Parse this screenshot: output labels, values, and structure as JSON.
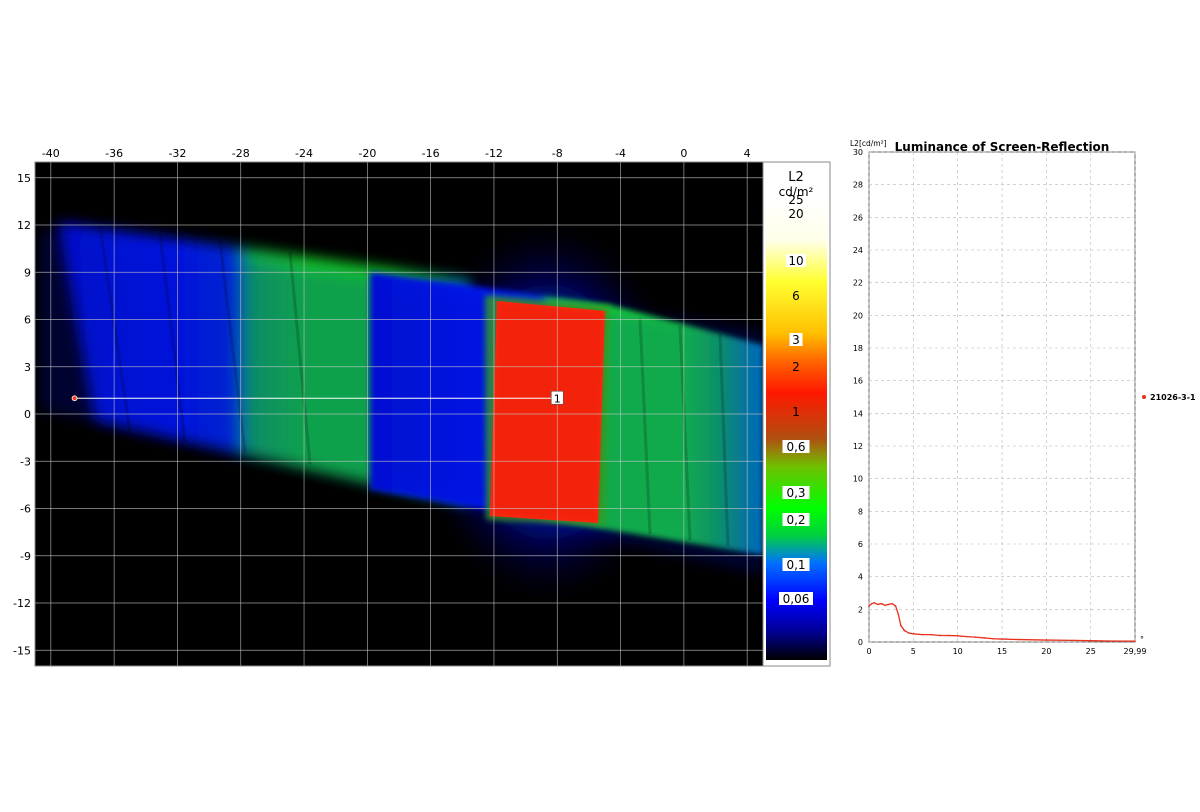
{
  "chart_data": [
    {
      "type": "heatmap",
      "title": "",
      "xlim": [
        -41,
        5
      ],
      "ylim": [
        -16,
        16
      ],
      "x_ticks": [
        "-40",
        "-36",
        "-32",
        "-28",
        "-24",
        "-20",
        "-16",
        "-12",
        "-8",
        "-4",
        "0",
        "4"
      ],
      "y_ticks": [
        "15",
        "12",
        "9",
        "6",
        "3",
        "0",
        "-3",
        "-6",
        "-9",
        "-12",
        "-15"
      ],
      "grid": true,
      "regions": {
        "blue_band": {
          "level": "0,1"
        },
        "green_band": {
          "level": "0,3 - 0,6"
        },
        "red_screen": {
          "level": "2",
          "x_range": [
            -12,
            -5
          ],
          "y_range": [
            -6.7,
            6.7
          ]
        }
      },
      "marker": {
        "label": "1",
        "x_start": -38.5,
        "x_end": -8,
        "y": 1
      },
      "colorbar": {
        "title": "L2",
        "unit": "cd/m²",
        "labels": [
          "25",
          "20",
          "10",
          "6",
          "3",
          "2",
          "1",
          "0,6",
          "0,3",
          "0,2",
          "0,1",
          "0,06"
        ]
      }
    },
    {
      "type": "line",
      "title": "Luminance of Screen-Reflection",
      "ylabel": "L2[cd/m²]",
      "xlabel": "°",
      "xlim": [
        0,
        29.99
      ],
      "ylim": [
        0,
        30
      ],
      "x_ticks": [
        "0",
        "5",
        "10",
        "15",
        "20",
        "25",
        "29,99"
      ],
      "y_ticks": [
        "30",
        "28",
        "26",
        "24",
        "22",
        "20",
        "18",
        "16",
        "14",
        "12",
        "10",
        "8",
        "6",
        "4",
        "2",
        "0"
      ],
      "grid": true,
      "legend_position": "right",
      "series": [
        {
          "name": "21026-3-1",
          "color": "#e8301c",
          "x": [
            0,
            0.3,
            0.6,
            1.0,
            1.4,
            1.8,
            2.2,
            2.6,
            3.0,
            3.3,
            3.6,
            4.0,
            4.5,
            5.0,
            6,
            7,
            8,
            9,
            10,
            11,
            12,
            13,
            14,
            15,
            17,
            20,
            23,
            25,
            27,
            29.99
          ],
          "y": [
            2.2,
            2.35,
            2.4,
            2.3,
            2.35,
            2.25,
            2.3,
            2.35,
            2.2,
            1.7,
            1.0,
            0.7,
            0.55,
            0.5,
            0.45,
            0.45,
            0.4,
            0.4,
            0.38,
            0.33,
            0.3,
            0.25,
            0.2,
            0.18,
            0.15,
            0.12,
            0.1,
            0.08,
            0.06,
            0.05
          ]
        }
      ]
    }
  ]
}
